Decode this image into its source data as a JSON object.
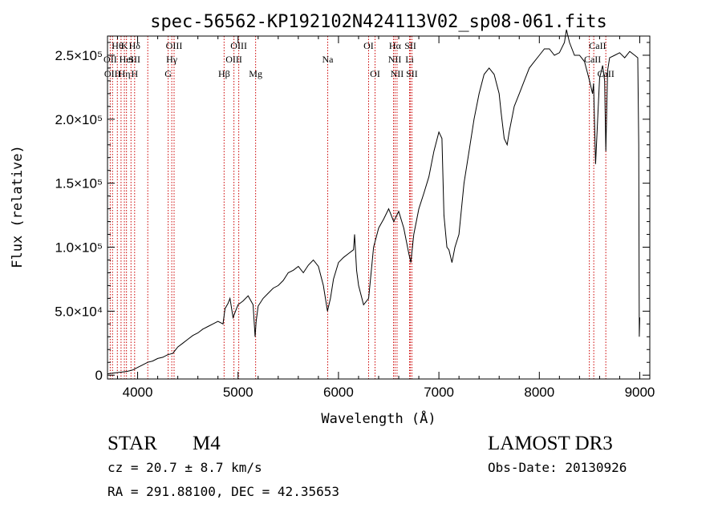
{
  "chart_data": {
    "type": "line",
    "title": "spec-56562-KP192102N424113V02_sp08-061.fits",
    "xlabel": "Wavelength (Å)",
    "ylabel": "Flux (relative)",
    "xlim": [
      3700,
      9100
    ],
    "ylim": [
      -3000,
      265000
    ],
    "x_ticks": [
      4000,
      5000,
      6000,
      7000,
      8000,
      9000
    ],
    "y_ticks": [
      {
        "value": 0,
        "label": "0"
      },
      {
        "value": 50000,
        "label": "5.0×10⁴"
      },
      {
        "value": 100000,
        "label": "1.0×10⁵"
      },
      {
        "value": 150000,
        "label": "1.5×10⁵"
      },
      {
        "value": 200000,
        "label": "2.0×10⁵"
      },
      {
        "value": 250000,
        "label": "2.5×10⁵"
      }
    ],
    "series": [
      {
        "name": "flux",
        "x": [
          3700,
          3750,
          3800,
          3850,
          3900,
          3950,
          4000,
          4050,
          4100,
          4150,
          4200,
          4250,
          4300,
          4350,
          4400,
          4450,
          4500,
          4550,
          4600,
          4650,
          4700,
          4750,
          4800,
          4850,
          4870,
          4900,
          4920,
          4950,
          5000,
          5050,
          5100,
          5150,
          5170,
          5180,
          5200,
          5250,
          5300,
          5350,
          5400,
          5450,
          5500,
          5550,
          5600,
          5650,
          5700,
          5750,
          5800,
          5850,
          5890,
          5920,
          5950,
          6000,
          6050,
          6100,
          6150,
          6160,
          6180,
          6200,
          6250,
          6300,
          6350,
          6400,
          6450,
          6500,
          6550,
          6600,
          6650,
          6700,
          6720,
          6750,
          6800,
          6850,
          6900,
          6950,
          7000,
          7030,
          7050,
          7080,
          7100,
          7130,
          7160,
          7200,
          7250,
          7300,
          7350,
          7400,
          7450,
          7500,
          7550,
          7600,
          7620,
          7650,
          7680,
          7700,
          7750,
          7800,
          7850,
          7900,
          7950,
          8000,
          8050,
          8100,
          8150,
          8200,
          8250,
          8270,
          8300,
          8350,
          8400,
          8450,
          8500,
          8530,
          8540,
          8560,
          8600,
          8630,
          8650,
          8662,
          8680,
          8700,
          8750,
          8800,
          8850,
          8900,
          8950,
          8980,
          8990,
          8995,
          9000
        ],
        "values": [
          1000,
          1500,
          2000,
          2500,
          3000,
          4000,
          6000,
          8000,
          10000,
          11000,
          13000,
          14000,
          16000,
          17000,
          22000,
          25000,
          28000,
          31000,
          33000,
          36000,
          38000,
          40000,
          42000,
          40000,
          52000,
          56000,
          60000,
          45000,
          55000,
          58000,
          62000,
          55000,
          30000,
          42000,
          54000,
          60000,
          64000,
          68000,
          70000,
          74000,
          80000,
          82000,
          85000,
          80000,
          86000,
          90000,
          85000,
          70000,
          50000,
          60000,
          75000,
          88000,
          92000,
          95000,
          98000,
          110000,
          82000,
          70000,
          55000,
          60000,
          100000,
          115000,
          122000,
          130000,
          120000,
          128000,
          115000,
          95000,
          88000,
          110000,
          130000,
          142000,
          155000,
          175000,
          190000,
          185000,
          125000,
          100000,
          98000,
          88000,
          100000,
          110000,
          150000,
          175000,
          200000,
          220000,
          235000,
          240000,
          235000,
          220000,
          205000,
          185000,
          180000,
          190000,
          210000,
          220000,
          230000,
          240000,
          245000,
          250000,
          255000,
          255000,
          250000,
          252000,
          260000,
          270000,
          260000,
          250000,
          250000,
          245000,
          230000,
          220000,
          228000,
          165000,
          232000,
          242000,
          230000,
          175000,
          238000,
          248000,
          250000,
          252000,
          248000,
          253000,
          250000,
          248000,
          180000,
          30000,
          45000
        ]
      }
    ],
    "line_labels": [
      {
        "x": 3800,
        "row": 0,
        "text": "Hθ"
      },
      {
        "x": 3870,
        "row": 0,
        "text": "K"
      },
      {
        "x": 3970,
        "row": 0,
        "text": "Hδ"
      },
      {
        "x": 4363,
        "row": 0,
        "text": "OIII"
      },
      {
        "x": 5007,
        "row": 0,
        "text": "OIII"
      },
      {
        "x": 6300,
        "row": 0,
        "text": "OI"
      },
      {
        "x": 6563,
        "row": 0,
        "text": "Hα"
      },
      {
        "x": 6716,
        "row": 0,
        "text": "SII"
      },
      {
        "x": 8580,
        "row": 0,
        "text": "CaII"
      },
      {
        "x": 3727,
        "row": 1,
        "text": "OII"
      },
      {
        "x": 3889,
        "row": 1,
        "text": "HeI"
      },
      {
        "x": 3969,
        "row": 1,
        "text": "SII"
      },
      {
        "x": 4340,
        "row": 1,
        "text": "Hγ"
      },
      {
        "x": 4959,
        "row": 1,
        "text": "OIII"
      },
      {
        "x": 5893,
        "row": 1,
        "text": "Na"
      },
      {
        "x": 6560,
        "row": 1,
        "text": "NII"
      },
      {
        "x": 6708,
        "row": 1,
        "text": "Li"
      },
      {
        "x": 8530,
        "row": 1,
        "text": "CaII"
      },
      {
        "x": 3750,
        "row": 2,
        "text": "OIII"
      },
      {
        "x": 3868,
        "row": 2,
        "text": "Hη"
      },
      {
        "x": 3970,
        "row": 2,
        "text": "H"
      },
      {
        "x": 4304,
        "row": 2,
        "text": "G"
      },
      {
        "x": 4861,
        "row": 2,
        "text": "Hβ"
      },
      {
        "x": 5175,
        "row": 2,
        "text": "Mg"
      },
      {
        "x": 6364,
        "row": 2,
        "text": "OI"
      },
      {
        "x": 6583,
        "row": 2,
        "text": "NII"
      },
      {
        "x": 6731,
        "row": 2,
        "text": "SII"
      },
      {
        "x": 8662,
        "row": 2,
        "text": "CaII"
      }
    ],
    "marker_lines": [
      3727,
      3750,
      3798,
      3835,
      3868,
      3889,
      3934,
      3970,
      4101,
      4304,
      4340,
      4363,
      4861,
      4959,
      5007,
      5175,
      5893,
      6300,
      6364,
      6548,
      6563,
      6583,
      6708,
      6716,
      6731,
      8498,
      8542,
      8662
    ]
  },
  "info": {
    "class": "STAR",
    "subclass": "M4",
    "survey": "LAMOST DR3",
    "cz": "cz = 20.7 ± 8.7 km/s",
    "obs_date": "Obs-Date: 20130926",
    "coords": "RA = 291.88100, DEC =  42.35653"
  }
}
